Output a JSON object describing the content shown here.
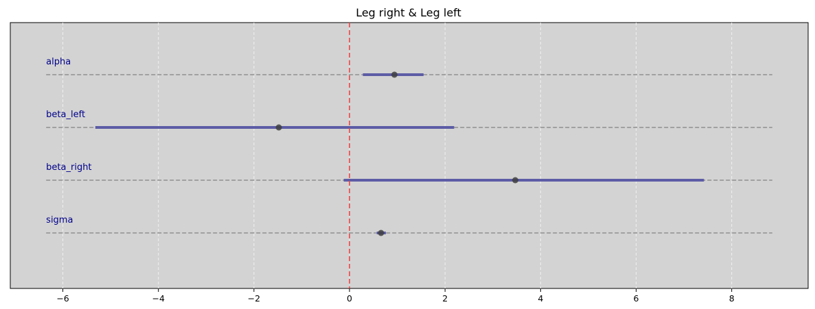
{
  "chart_data": {
    "type": "forest",
    "title": "Leg right & Leg left",
    "xlim": [
      -7.1,
      9.6
    ],
    "xticks": [
      -6,
      -4,
      -2,
      0,
      2,
      4,
      6,
      8
    ],
    "xtick_labels": [
      "−6",
      "−4",
      "−2",
      "0",
      "2",
      "4",
      "6",
      "8"
    ],
    "reference_line": 0,
    "guide_range": [
      -6.35,
      8.85
    ],
    "grid": "vertical dashed",
    "rows": [
      {
        "name": "alpha",
        "mean": 0.94,
        "low": 0.28,
        "high": 1.55
      },
      {
        "name": "beta_left",
        "mean": -1.48,
        "low": -5.32,
        "high": 2.19
      },
      {
        "name": "beta_right",
        "mean": 3.47,
        "low": -0.12,
        "high": 7.42
      },
      {
        "name": "sigma",
        "mean": 0.66,
        "low": 0.57,
        "high": 0.76
      }
    ],
    "colors": {
      "plot_background": "#d3d3d3",
      "interval": "#5c5ca6",
      "point": "#3f3f3f",
      "guide_line": "#8f8f8f",
      "reference": "#ee4444",
      "label": "#00008b",
      "grid": "#f0f0f0"
    }
  }
}
